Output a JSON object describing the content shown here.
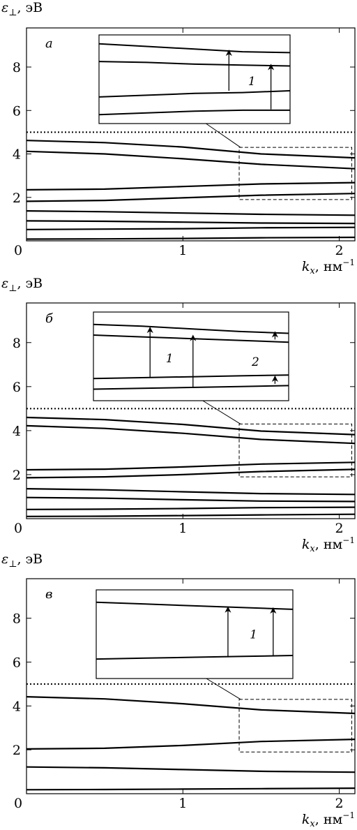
{
  "chart_data": [
    {
      "type": "line",
      "panel_label": "а",
      "ylabel_symbol": "ε",
      "ylabel_sub": "⊥",
      "ylabel_unit": ", эВ",
      "xlabel_symbol": "k",
      "xlabel_sub": "x",
      "xlabel_unit": ", нм",
      "xlabel_exp": "−1",
      "xlim": [
        0,
        2.1
      ],
      "ylim": [
        0,
        9.8
      ],
      "xticks": [
        0,
        1,
        2
      ],
      "xtick_labels": [
        "0",
        "1",
        "2"
      ],
      "yticks": [
        2,
        4,
        6,
        8
      ],
      "ytick_labels": [
        "2",
        "4",
        "6",
        "8"
      ],
      "reference_line": {
        "y": 5.0,
        "style": "dotted"
      },
      "zoom_box": {
        "x": [
          1.36,
          2.08
        ],
        "y": [
          1.9,
          4.3
        ]
      },
      "bands": [
        {
          "x": [
            0,
            0.5,
            1.0,
            1.5,
            2.1
          ],
          "y": [
            4.62,
            4.52,
            4.32,
            4.0,
            3.82
          ]
        },
        {
          "x": [
            0,
            0.5,
            1.0,
            1.5,
            2.1
          ],
          "y": [
            4.12,
            4.0,
            3.78,
            3.52,
            3.32
          ]
        },
        {
          "x": [
            0,
            0.5,
            1.0,
            1.5,
            2.1
          ],
          "y": [
            2.35,
            2.38,
            2.5,
            2.62,
            2.68
          ]
        },
        {
          "x": [
            0,
            0.5,
            1.0,
            1.5,
            2.1
          ],
          "y": [
            1.82,
            1.86,
            1.98,
            2.1,
            2.18
          ]
        },
        {
          "x": [
            0,
            0.5,
            1.0,
            1.5,
            2.1
          ],
          "y": [
            1.38,
            1.34,
            1.28,
            1.22,
            1.18
          ]
        },
        {
          "x": [
            0,
            0.5,
            1.0,
            1.5,
            2.1
          ],
          "y": [
            0.92,
            0.9,
            0.86,
            0.82,
            0.8
          ]
        },
        {
          "x": [
            0,
            0.5,
            1.0,
            1.5,
            2.1
          ],
          "y": [
            0.52,
            0.54,
            0.56,
            0.6,
            0.62
          ]
        },
        {
          "x": [
            0,
            0.5,
            1.0,
            1.5,
            2.1
          ],
          "y": [
            0.08,
            0.09,
            0.11,
            0.14,
            0.16
          ]
        }
      ],
      "inset": {
        "bands": [
          {
            "x": [
              0,
              0.25,
              0.5,
              0.75,
              1
            ],
            "y": [
              0.9,
              0.87,
              0.84,
              0.81,
              0.8
            ]
          },
          {
            "x": [
              0,
              0.25,
              0.5,
              0.75,
              1
            ],
            "y": [
              0.7,
              0.69,
              0.67,
              0.66,
              0.65
            ]
          },
          {
            "x": [
              0,
              0.25,
              0.5,
              0.75,
              1
            ],
            "y": [
              0.3,
              0.32,
              0.34,
              0.35,
              0.37
            ]
          },
          {
            "x": [
              0,
              0.25,
              0.5,
              0.75,
              1
            ],
            "y": [
              0.1,
              0.12,
              0.14,
              0.15,
              0.15
            ]
          }
        ],
        "arrows": [
          {
            "x": 0.68,
            "from": 0.37,
            "to": 0.82
          },
          {
            "x": 0.9,
            "from": 0.16,
            "to": 0.66
          }
        ],
        "annotations": [
          {
            "text": "1",
            "x": 0.8,
            "y": 0.48
          }
        ]
      }
    },
    {
      "type": "line",
      "panel_label": "б",
      "ylabel_symbol": "ε",
      "ylabel_sub": "⊥",
      "ylabel_unit": ", эВ",
      "xlabel_symbol": "k",
      "xlabel_sub": "x",
      "xlabel_unit": ", нм",
      "xlabel_exp": "−1",
      "xlim": [
        0,
        2.1
      ],
      "ylim": [
        0,
        9.8
      ],
      "xticks": [
        0,
        1,
        2
      ],
      "xtick_labels": [
        "0",
        "1",
        "2"
      ],
      "yticks": [
        2,
        4,
        6,
        8
      ],
      "ytick_labels": [
        "2",
        "4",
        "6",
        "8"
      ],
      "reference_line": {
        "y": 5.0,
        "style": "dotted"
      },
      "zoom_box": {
        "x": [
          1.36,
          2.08
        ],
        "y": [
          1.9,
          4.3
        ]
      },
      "bands": [
        {
          "x": [
            0,
            0.5,
            1.0,
            1.5,
            2.1
          ],
          "y": [
            4.6,
            4.5,
            4.28,
            3.98,
            3.82
          ]
        },
        {
          "x": [
            0,
            0.5,
            1.0,
            1.5,
            2.1
          ],
          "y": [
            4.22,
            4.1,
            3.88,
            3.6,
            3.42
          ]
        },
        {
          "x": [
            0,
            0.5,
            1.0,
            1.5,
            2.1
          ],
          "y": [
            2.22,
            2.25,
            2.35,
            2.48,
            2.56
          ]
        },
        {
          "x": [
            0,
            0.5,
            1.0,
            1.5,
            2.1
          ],
          "y": [
            1.86,
            1.9,
            2.0,
            2.14,
            2.24
          ]
        },
        {
          "x": [
            0,
            0.5,
            1.0,
            1.5,
            2.1
          ],
          "y": [
            1.36,
            1.31,
            1.22,
            1.14,
            1.1
          ]
        },
        {
          "x": [
            0,
            0.5,
            1.0,
            1.5,
            2.1
          ],
          "y": [
            0.96,
            0.93,
            0.86,
            0.8,
            0.78
          ]
        },
        {
          "x": [
            0,
            0.5,
            1.0,
            1.5,
            2.1
          ],
          "y": [
            0.42,
            0.43,
            0.46,
            0.5,
            0.52
          ]
        },
        {
          "x": [
            0,
            0.5,
            1.0,
            1.5,
            2.1
          ],
          "y": [
            0.1,
            0.11,
            0.14,
            0.17,
            0.2
          ]
        }
      ],
      "inset": {
        "bands": [
          {
            "x": [
              0,
              0.25,
              0.5,
              0.75,
              1
            ],
            "y": [
              0.86,
              0.84,
              0.81,
              0.78,
              0.76
            ]
          },
          {
            "x": [
              0,
              0.25,
              0.5,
              0.75,
              1
            ],
            "y": [
              0.74,
              0.72,
              0.7,
              0.68,
              0.66
            ]
          },
          {
            "x": [
              0,
              0.25,
              0.5,
              0.75,
              1
            ],
            "y": [
              0.25,
              0.26,
              0.27,
              0.28,
              0.29
            ]
          },
          {
            "x": [
              0,
              0.25,
              0.5,
              0.75,
              1
            ],
            "y": [
              0.13,
              0.14,
              0.15,
              0.16,
              0.17
            ]
          }
        ],
        "arrows": [
          {
            "x": 0.29,
            "from": 0.26,
            "to": 0.82
          },
          {
            "x": 0.51,
            "from": 0.15,
            "to": 0.73
          },
          {
            "x": 0.93,
            "from": 0.69,
            "to": 0.77
          },
          {
            "x": 0.93,
            "from": 0.19,
            "to": 0.27
          }
        ],
        "annotations": [
          {
            "text": "1",
            "x": 0.39,
            "y": 0.48
          },
          {
            "text": "2",
            "x": 0.83,
            "y": 0.44
          }
        ]
      }
    },
    {
      "type": "line",
      "panel_label": "в",
      "ylabel_symbol": "ε",
      "ylabel_sub": "⊥",
      "ylabel_unit": ", эВ",
      "xlabel_symbol": "k",
      "xlabel_sub": "x",
      "xlabel_unit": ", нм",
      "xlabel_exp": "−1",
      "xlim": [
        0,
        2.1
      ],
      "ylim": [
        0,
        9.8
      ],
      "xticks": [
        0,
        1,
        2
      ],
      "xtick_labels": [
        "0",
        "1",
        "2"
      ],
      "yticks": [
        2,
        4,
        6,
        8
      ],
      "ytick_labels": [
        "2",
        "4",
        "6",
        "8"
      ],
      "reference_line": {
        "y": 5.0,
        "style": "dotted"
      },
      "zoom_box": {
        "x": [
          1.36,
          2.08
        ],
        "y": [
          1.9,
          4.3
        ]
      },
      "bands": [
        {
          "x": [
            0,
            0.5,
            1.0,
            1.5,
            2.1
          ],
          "y": [
            4.42,
            4.32,
            4.1,
            3.82,
            3.66
          ]
        },
        {
          "x": [
            0,
            0.5,
            1.0,
            1.5,
            2.1
          ],
          "y": [
            2.04,
            2.07,
            2.2,
            2.38,
            2.48
          ]
        },
        {
          "x": [
            0,
            0.5,
            1.0,
            1.5,
            2.1
          ],
          "y": [
            1.22,
            1.18,
            1.1,
            1.02,
            0.98
          ]
        },
        {
          "x": [
            0,
            0.5,
            1.0,
            1.5,
            2.1
          ],
          "y": [
            0.18,
            0.19,
            0.21,
            0.23,
            0.25
          ]
        }
      ],
      "inset": {
        "bands": [
          {
            "x": [
              0,
              0.25,
              0.5,
              0.75,
              1
            ],
            "y": [
              0.86,
              0.84,
              0.82,
              0.8,
              0.78
            ]
          },
          {
            "x": [
              0,
              0.25,
              0.5,
              0.75,
              1
            ],
            "y": [
              0.22,
              0.23,
              0.24,
              0.25,
              0.26
            ]
          }
        ],
        "arrows": [
          {
            "x": 0.67,
            "from": 0.24,
            "to": 0.8
          },
          {
            "x": 0.9,
            "from": 0.26,
            "to": 0.79
          }
        ],
        "annotations": [
          {
            "text": "1",
            "x": 0.8,
            "y": 0.5
          }
        ]
      }
    }
  ]
}
